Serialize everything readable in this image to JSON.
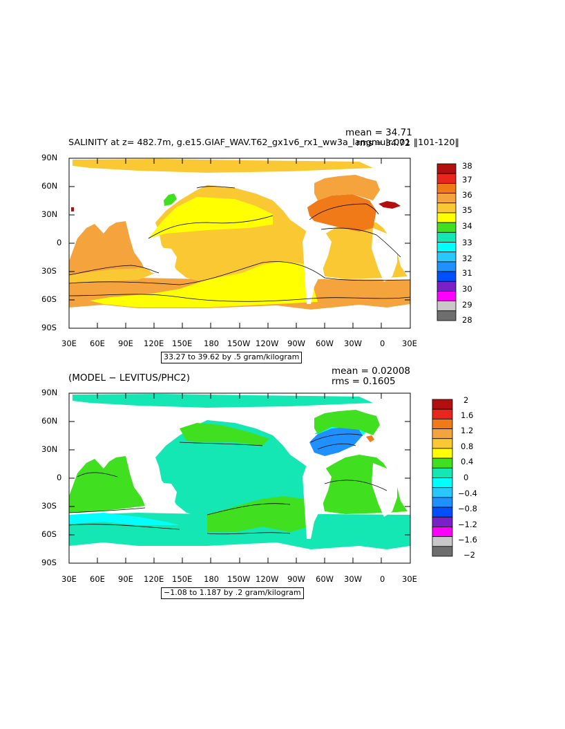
{
  "panel1": {
    "title": "SALINITY at z= 482.7m, g.e15.GIAF_WAV.T62_gx1v6_rx1_ww3a_langmuir.001 ‖101-120‖",
    "mean": "mean = 34.71",
    "rms": "rms = 34.72",
    "range": "33.27 to 39.62 by .5 gram/kilogram",
    "colorbar": {
      "labels": [
        "38",
        "37",
        "36",
        "35",
        "34",
        "33",
        "32",
        "31",
        "30",
        "29",
        "28"
      ],
      "colors": [
        "#b40f0f",
        "#e8261c",
        "#f07a18",
        "#f5a33c",
        "#fac832",
        "#ffff00",
        "#40e020",
        "#14e6b4",
        "#00ffff",
        "#28c8ff",
        "#1e90ff",
        "#0050ff",
        "#7a20c8",
        "#ff00ff",
        "#c8c8c8",
        "#6e6e6e"
      ]
    }
  },
  "panel2": {
    "title": "(MODEL − LEVITUS/PHC2)",
    "mean": "mean = 0.02008",
    "rms": "rms = 0.1605",
    "range": "−1.08 to 1.187 by .2 gram/kilogram",
    "colorbar": {
      "labels": [
        "2",
        "1.6",
        "1.2",
        "0.8",
        "0.4",
        "0",
        "−0.4",
        "−0.8",
        "−1.2",
        "−1.6",
        "−2"
      ],
      "colors": [
        "#b40f0f",
        "#e8261c",
        "#f07a18",
        "#f5a33c",
        "#fac832",
        "#ffff00",
        "#40e020",
        "#14e6b4",
        "#00ffff",
        "#28c8ff",
        "#1e90ff",
        "#0050ff",
        "#7a20c8",
        "#ff00ff",
        "#c8c8c8",
        "#6e6e6e"
      ]
    }
  },
  "axes": {
    "lat_labels": [
      "90N",
      "60N",
      "30N",
      "0",
      "30S",
      "60S",
      "90S"
    ],
    "lon_labels": [
      "30E",
      "60E",
      "90E",
      "120E",
      "150E",
      "180",
      "150W",
      "120W",
      "90W",
      "60W",
      "30W",
      "0",
      "30E"
    ]
  }
}
